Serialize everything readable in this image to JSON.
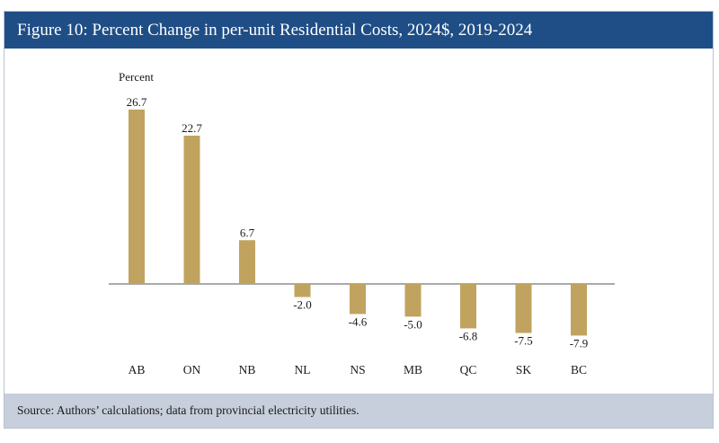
{
  "title": "Figure 10: Percent Change in per-unit Residential Costs, 2024$, 2019-2024",
  "source": "Source: Authors’ calculations; data from provincial electricity utilities.",
  "colors": {
    "title_bg": "#1f4e86",
    "source_bg": "#c7cfdc",
    "bar": "#c0a35e",
    "axis": "#555555"
  },
  "chart_data": {
    "type": "bar",
    "title": "Figure 10: Percent Change in per-unit Residential Costs, 2024$, 2019-2024",
    "ylabel": "Percent",
    "xlabel": "",
    "categories": [
      "AB",
      "ON",
      "NB",
      "NL",
      "NS",
      "MB",
      "QC",
      "SK",
      "BC"
    ],
    "values": [
      26.7,
      22.7,
      6.7,
      -2.0,
      -4.6,
      -5.0,
      -6.8,
      -7.5,
      -7.9
    ],
    "value_labels": [
      "26.7",
      "22.7",
      "6.7",
      "-2.0",
      "-4.6",
      "-5.0",
      "-6.8",
      "-7.5",
      "-7.9"
    ],
    "grid": false,
    "legend": "none"
  }
}
